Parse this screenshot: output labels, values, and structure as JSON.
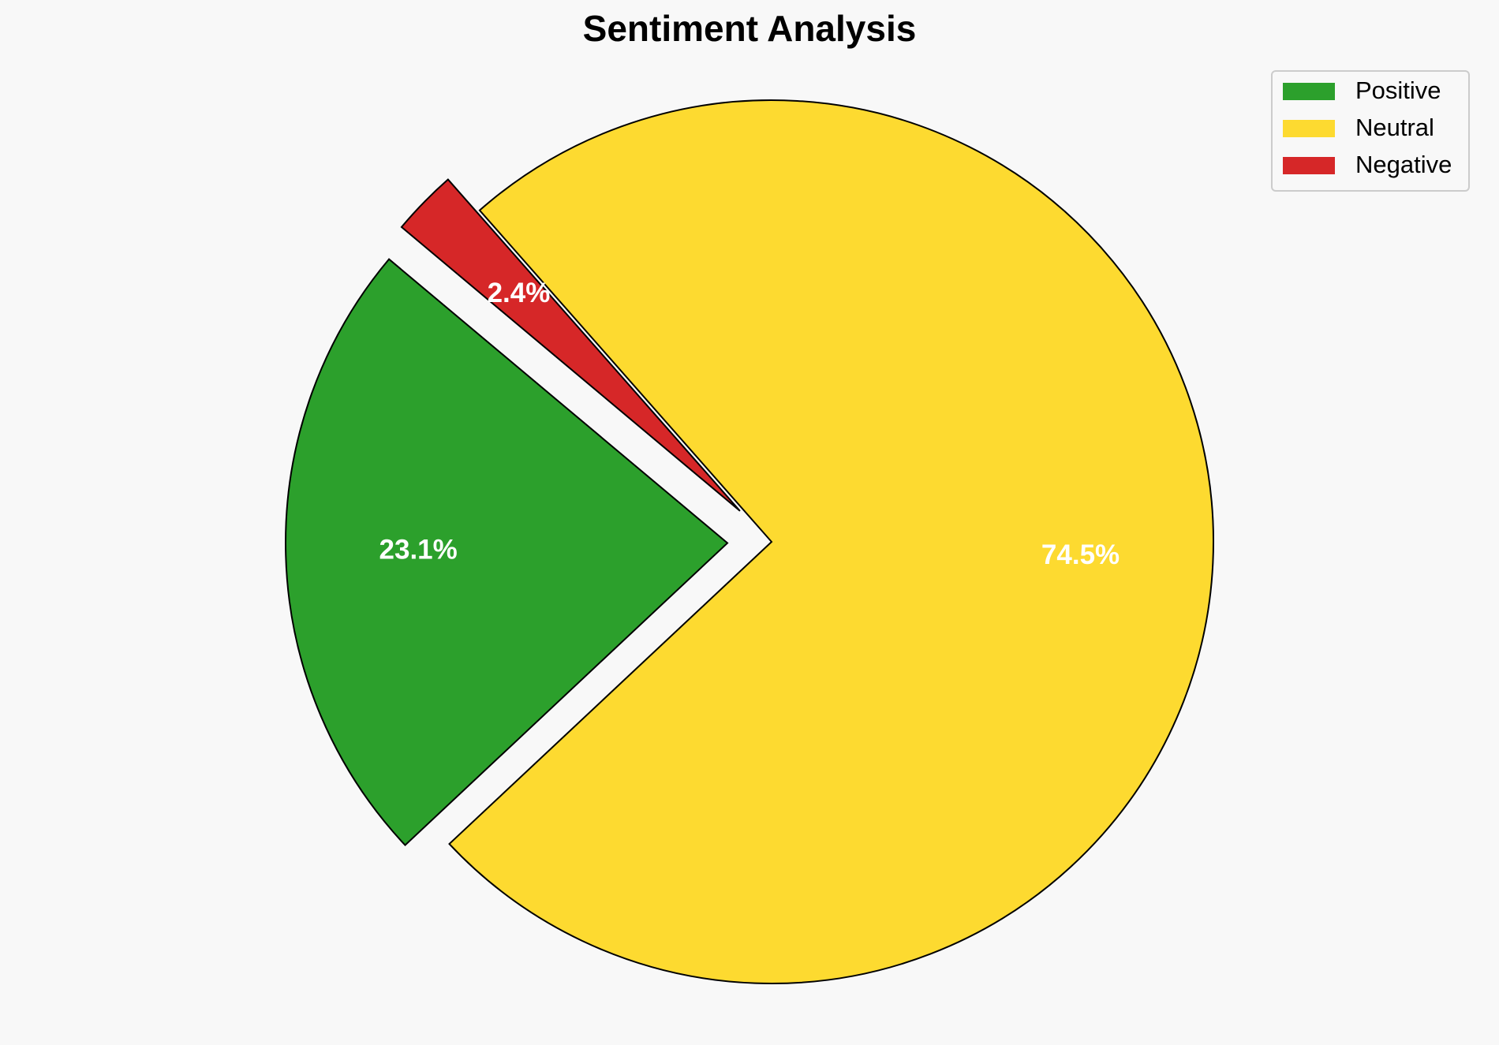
{
  "chart_data": {
    "type": "pie",
    "title": "Sentiment Analysis",
    "series": [
      {
        "name": "Positive",
        "color": "#2ca02c"
      },
      {
        "name": "Neutral",
        "color": "#fdda30"
      },
      {
        "name": "Negative",
        "color": "#d62728"
      }
    ],
    "values": [
      23.1,
      74.5,
      2.4
    ],
    "value_labels": [
      "23.1%",
      "74.5%",
      "2.4%"
    ],
    "explode": [
      0.1,
      0,
      0.1
    ],
    "start_angle": 140,
    "legend": "upper right"
  }
}
